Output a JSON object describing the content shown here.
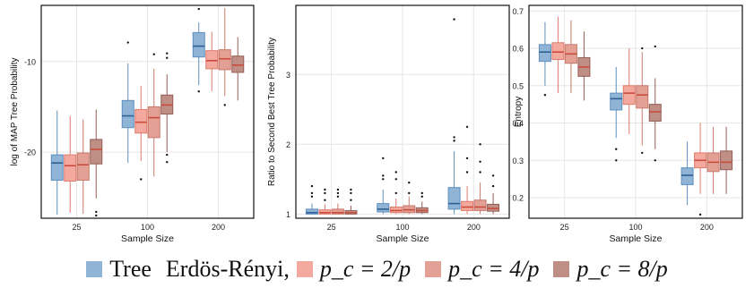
{
  "colors": {
    "tree": "#8fb4d6",
    "tree_stroke": "#5f8fbf",
    "pc2": "#f4a99e",
    "pc2_stroke": "#e07b6c",
    "pc4": "#e3a094",
    "pc4_stroke": "#c9786b",
    "pc8": "#bf8e85",
    "pc8_stroke": "#925e56",
    "median_tree": "#2f5f94",
    "median_er": "#c94c3d",
    "grid": "#e6e6e6"
  },
  "legend": {
    "tree_label": "Tree",
    "er_prefix": "Erdös-Rényi,",
    "pc2_label": "p_c = 2/p",
    "pc4_label": "p_c = 4/p",
    "pc8_label": "p_c = 8/p"
  },
  "chart_data": [
    {
      "type": "box",
      "xlabel": "Sample Size",
      "ylabel": "log of MAP Tree Probability",
      "categories": [
        "25",
        "100",
        "200"
      ],
      "yticks": [
        -20,
        -10
      ],
      "ylim": [
        -27.3,
        -3.8
      ],
      "grid": true,
      "series": [
        {
          "name": "Tree",
          "boxes": [
            {
              "min": -26.9,
              "q1": -23.1,
              "med": -21.2,
              "q3": -20.3,
              "max": -15.4,
              "outliers": []
            },
            {
              "min": -21.2,
              "q1": -17.3,
              "med": -16.0,
              "q3": -14.3,
              "max": -10.2,
              "outliers": [
                -7.9
              ]
            },
            {
              "min": -12.6,
              "q1": -9.5,
              "med": -8.3,
              "q3": -6.8,
              "max": -5.7,
              "outliers": [
                -13.3,
                -4.2
              ]
            }
          ]
        },
        {
          "name": "p_c = 2/p",
          "boxes": [
            {
              "min": -26.7,
              "q1": -23.2,
              "med": -21.5,
              "q3": -20.3,
              "max": -16.0,
              "outliers": []
            },
            {
              "min": -21.0,
              "q1": -17.9,
              "med": -16.7,
              "q3": -15.3,
              "max": -12.7,
              "outliers": [
                -23.0
              ]
            },
            {
              "min": -13.3,
              "q1": -10.8,
              "med": -9.9,
              "q3": -8.8,
              "max": -6.7,
              "outliers": []
            }
          ]
        },
        {
          "name": "p_c = 4/p",
          "boxes": [
            {
              "min": -26.8,
              "q1": -23.1,
              "med": -21.4,
              "q3": -20.1,
              "max": -16.4,
              "outliers": []
            },
            {
              "min": -22.7,
              "q1": -18.4,
              "med": -16.2,
              "q3": -15.0,
              "max": -10.8,
              "outliers": [
                -9.2
              ]
            },
            {
              "min": -13.8,
              "q1": -10.9,
              "med": -9.7,
              "q3": -8.7,
              "max": -4.1,
              "outliers": [
                -14.8
              ]
            }
          ]
        },
        {
          "name": "p_c = 8/p",
          "boxes": [
            {
              "min": -25.1,
              "q1": -21.3,
              "med": -19.7,
              "q3": -18.6,
              "max": -15.3,
              "outliers": [
                -26.6,
                -27.0
              ]
            },
            {
              "min": -20.0,
              "q1": -15.8,
              "med": -14.8,
              "q3": -13.7,
              "max": -11.4,
              "outliers": [
                -20.3,
                -21.1,
                -9.1,
                -9.6
              ]
            },
            {
              "min": -14.3,
              "q1": -11.2,
              "med": -10.4,
              "q3": -9.4,
              "max": -7.3,
              "outliers": []
            }
          ]
        }
      ]
    },
    {
      "type": "box",
      "xlabel": "Sample Size",
      "ylabel": "Ratio to Second Best Tree Probability",
      "categories": [
        "25",
        "100",
        "200"
      ],
      "yticks": [
        1,
        2,
        3
      ],
      "ylim": [
        0.94,
        3.99
      ],
      "grid": true,
      "series": [
        {
          "name": "Tree",
          "boxes": [
            {
              "min": 1.0,
              "q1": 1.0,
              "med": 1.02,
              "q3": 1.07,
              "max": 1.15,
              "outliers": [
                1.25,
                1.3,
                1.4
              ]
            },
            {
              "min": 1.0,
              "q1": 1.03,
              "med": 1.07,
              "q3": 1.15,
              "max": 1.35,
              "outliers": [
                1.5,
                1.55,
                1.8
              ]
            },
            {
              "min": 1.0,
              "q1": 1.07,
              "med": 1.15,
              "q3": 1.38,
              "max": 1.9,
              "outliers": [
                2.05,
                2.1,
                3.79
              ]
            }
          ]
        },
        {
          "name": "p_c = 2/p",
          "boxes": [
            {
              "min": 1.0,
              "q1": 1.0,
              "med": 1.02,
              "q3": 1.06,
              "max": 1.14,
              "outliers": [
                1.2,
                1.3,
                1.35
              ]
            },
            {
              "min": 1.0,
              "q1": 1.02,
              "med": 1.05,
              "q3": 1.1,
              "max": 1.22,
              "outliers": [
                1.3,
                1.5,
                1.6
              ]
            },
            {
              "min": 1.0,
              "q1": 1.05,
              "med": 1.1,
              "q3": 1.18,
              "max": 1.4,
              "outliers": [
                1.6,
                1.8,
                2.25
              ]
            }
          ]
        },
        {
          "name": "p_c = 4/p",
          "boxes": [
            {
              "min": 1.0,
              "q1": 1.0,
              "med": 1.02,
              "q3": 1.07,
              "max": 1.15,
              "outliers": [
                1.25,
                1.3,
                1.35
              ]
            },
            {
              "min": 1.0,
              "q1": 1.02,
              "med": 1.06,
              "q3": 1.12,
              "max": 1.25,
              "outliers": [
                1.3,
                1.45
              ]
            },
            {
              "min": 1.0,
              "q1": 1.05,
              "med": 1.1,
              "q3": 1.2,
              "max": 1.45,
              "outliers": [
                1.6,
                1.75,
                2.0
              ]
            }
          ]
        },
        {
          "name": "p_c = 8/p",
          "boxes": [
            {
              "min": 1.0,
              "q1": 1.0,
              "med": 1.02,
              "q3": 1.05,
              "max": 1.12,
              "outliers": [
                1.2,
                1.3,
                1.35
              ]
            },
            {
              "min": 1.0,
              "q1": 1.02,
              "med": 1.05,
              "q3": 1.09,
              "max": 1.18,
              "outliers": [
                1.25,
                1.3
              ]
            },
            {
              "min": 1.0,
              "q1": 1.04,
              "med": 1.08,
              "q3": 1.14,
              "max": 1.3,
              "outliers": [
                1.4,
                1.55
              ]
            }
          ]
        }
      ]
    },
    {
      "type": "box",
      "xlabel": "Sample Size",
      "ylabel": "Entropy",
      "categories": [
        "25",
        "100",
        "200"
      ],
      "yticks": [
        0.2,
        0.3,
        0.4,
        0.5,
        0.6,
        0.7
      ],
      "ylim": [
        0.145,
        0.715
      ],
      "grid": true,
      "series": [
        {
          "name": "Tree",
          "boxes": [
            {
              "min": 0.5,
              "q1": 0.565,
              "med": 0.59,
              "q3": 0.61,
              "max": 0.67,
              "outliers": [
                0.475
              ]
            },
            {
              "min": 0.36,
              "q1": 0.435,
              "med": 0.465,
              "q3": 0.48,
              "max": 0.55,
              "outliers": [
                0.3,
                0.33
              ]
            },
            {
              "min": 0.18,
              "q1": 0.235,
              "med": 0.26,
              "q3": 0.28,
              "max": 0.35,
              "outliers": []
            }
          ]
        },
        {
          "name": "p_c = 2/p",
          "boxes": [
            {
              "min": 0.48,
              "q1": 0.57,
              "med": 0.59,
              "q3": 0.615,
              "max": 0.685,
              "outliers": []
            },
            {
              "min": 0.37,
              "q1": 0.45,
              "med": 0.48,
              "q3": 0.5,
              "max": 0.6,
              "outliers": []
            },
            {
              "min": 0.21,
              "q1": 0.28,
              "med": 0.3,
              "q3": 0.32,
              "max": 0.4,
              "outliers": [
                0.155
              ]
            }
          ]
        },
        {
          "name": "p_c = 4/p",
          "boxes": [
            {
              "min": 0.48,
              "q1": 0.56,
              "med": 0.585,
              "q3": 0.61,
              "max": 0.675,
              "outliers": []
            },
            {
              "min": 0.34,
              "q1": 0.44,
              "med": 0.475,
              "q3": 0.5,
              "max": 0.59,
              "outliers": [
                0.32,
                0.6
              ]
            },
            {
              "min": 0.21,
              "q1": 0.27,
              "med": 0.295,
              "q3": 0.32,
              "max": 0.39,
              "outliers": []
            }
          ]
        },
        {
          "name": "p_c = 8/p",
          "boxes": [
            {
              "min": 0.46,
              "q1": 0.525,
              "med": 0.55,
              "q3": 0.575,
              "max": 0.645,
              "outliers": []
            },
            {
              "min": 0.33,
              "q1": 0.405,
              "med": 0.43,
              "q3": 0.45,
              "max": 0.52,
              "outliers": [
                0.3,
                0.605
              ]
            },
            {
              "min": 0.21,
              "q1": 0.275,
              "med": 0.295,
              "q3": 0.325,
              "max": 0.39,
              "outliers": []
            }
          ]
        }
      ]
    }
  ]
}
